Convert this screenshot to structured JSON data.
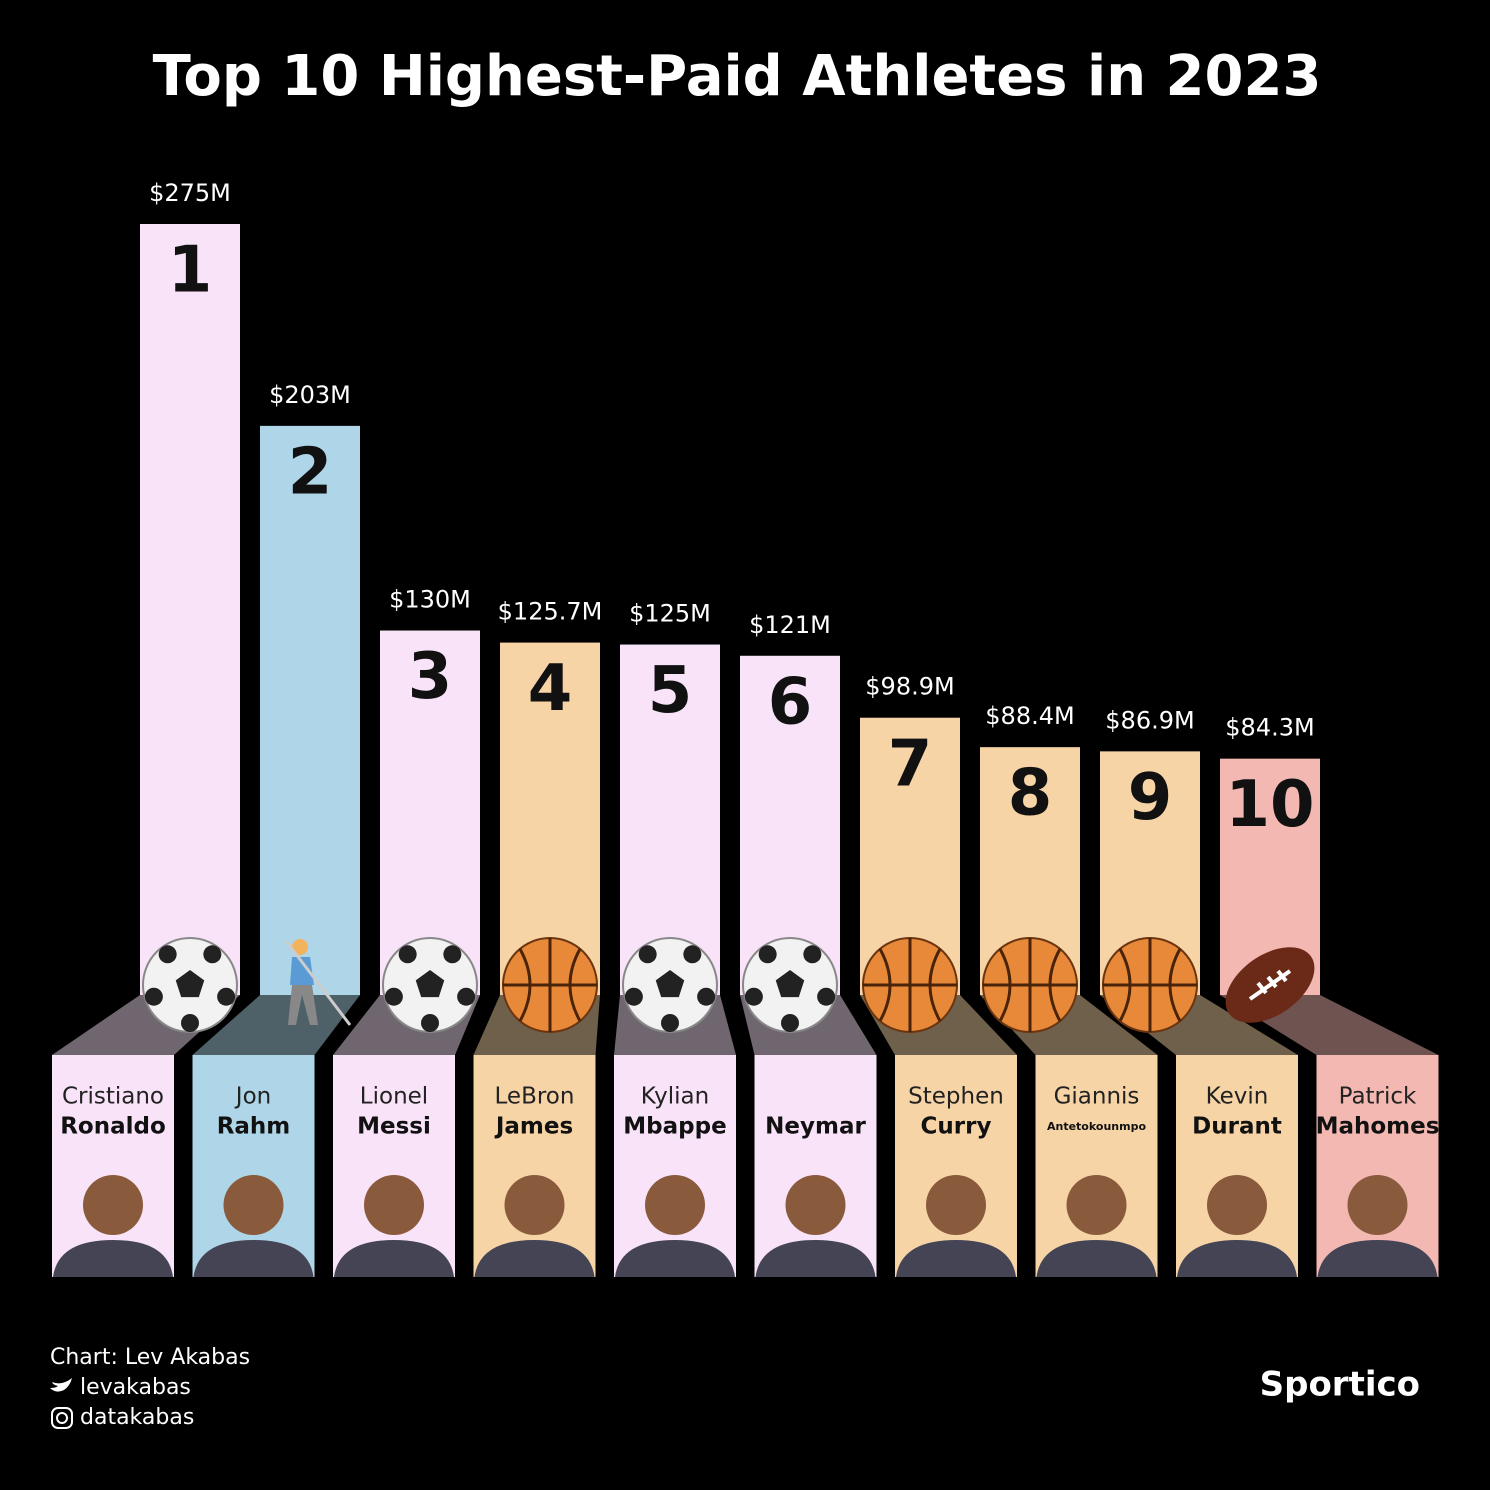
{
  "chart_data": {
    "type": "bar",
    "title": "Top 10 Highest-Paid Athletes in 2023",
    "ranks": [
      1,
      2,
      3,
      4,
      5,
      6,
      7,
      8,
      9,
      10
    ],
    "first_names": [
      "Cristiano",
      "Jon",
      "Lionel",
      "LeBron",
      "Kylian",
      null,
      "Stephen",
      "Giannis",
      "Kevin",
      "Patrick"
    ],
    "categories": [
      "Ronaldo",
      "Rahm",
      "Messi",
      "James",
      "Mbappe",
      "Neymar",
      "Curry",
      "Antetokounmpo",
      "Durant",
      "Mahomes"
    ],
    "values": [
      275,
      203,
      130,
      125.7,
      125,
      121,
      98.9,
      88.4,
      86.9,
      84.3
    ],
    "value_labels": [
      "$275M",
      "$203M",
      "$130M",
      "$125.7M",
      "$125M",
      "$121M",
      "$98.9M",
      "$88.4M",
      "$86.9M",
      "$84.3M"
    ],
    "sports": [
      "soccer",
      "golf",
      "soccer",
      "basketball",
      "soccer",
      "soccer",
      "basketball",
      "basketball",
      "basketball",
      "football"
    ],
    "colors": [
      "#f9e3f9",
      "#aed6e8",
      "#f9e3f9",
      "#f6d4a6",
      "#f9e3f9",
      "#f9e3f9",
      "#f6d4a6",
      "#f6d4a6",
      "#f6d4a6",
      "#f3b8b2"
    ]
  },
  "footer": {
    "credit": "Chart: Lev Akabas",
    "twitter": "levakabas",
    "instagram": "datakabas",
    "brand": "Sportico"
  }
}
